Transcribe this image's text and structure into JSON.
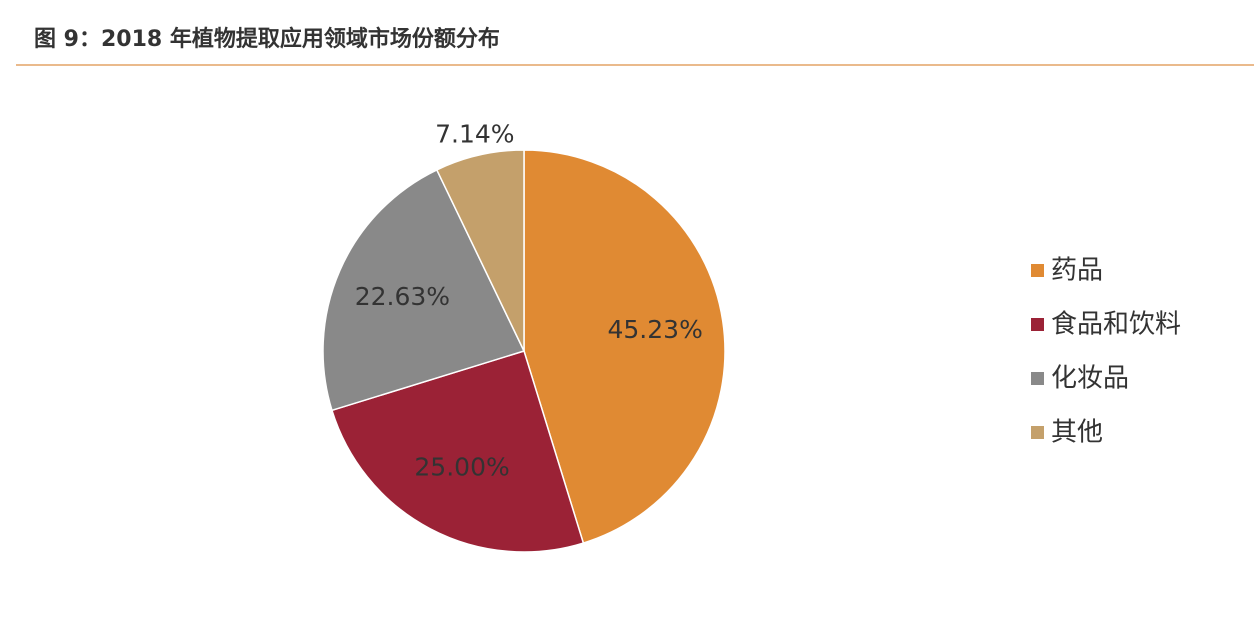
{
  "chart_data": {
    "type": "pie",
    "title": "图 9：2018 年植物提取应用领域市场份额分布",
    "categories": [
      "药品",
      "食品和饮料",
      "化妆品",
      "其他"
    ],
    "values": [
      45.23,
      25.0,
      22.63,
      7.14
    ],
    "value_labels": [
      "45.23%",
      "25.00%",
      "22.63%",
      "7.14%"
    ],
    "colors": [
      "#e08a33",
      "#9b2236",
      "#898989",
      "#c4a06b"
    ],
    "legend": "right"
  }
}
